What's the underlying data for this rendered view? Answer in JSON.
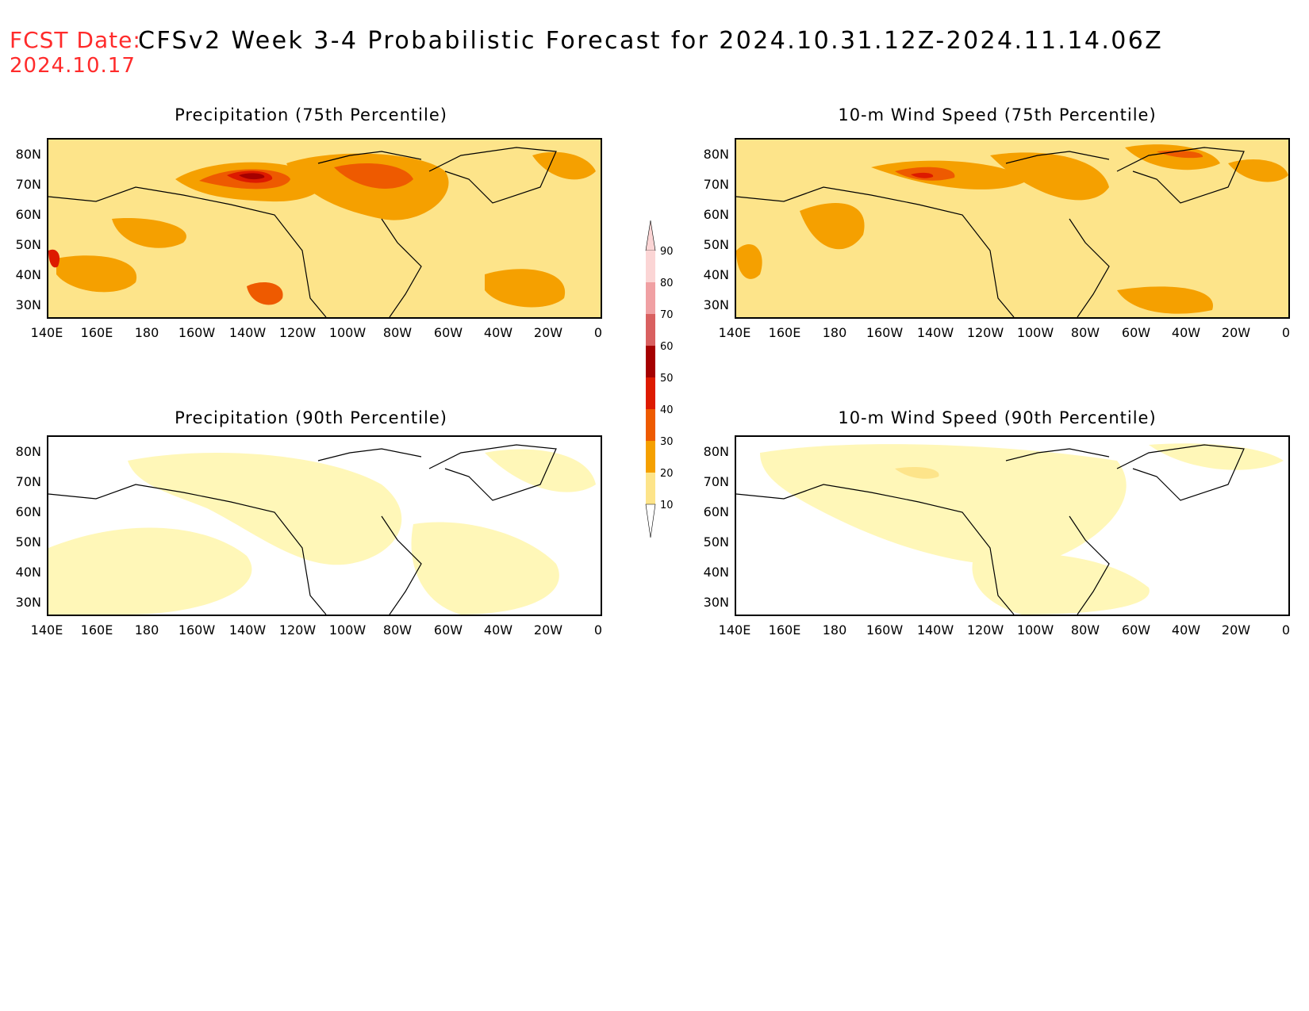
{
  "header": {
    "fcst_label": "FCST Date:",
    "fcst_date": "2024.10.17",
    "title": "CFSv2 Week 3-4 Probabilistic Forecast for 2024.10.31.12Z-2024.11.14.06Z"
  },
  "panels": [
    {
      "title": "Precipitation (75th Percentile)",
      "base_level": 20
    },
    {
      "title": "10-m Wind Speed (75th Percentile)",
      "base_level": 20
    },
    {
      "title": "Precipitation (90th Percentile)",
      "base_level": 10
    },
    {
      "title": "10-m Wind Speed (90th Percentile)",
      "base_level": 10
    }
  ],
  "lat_labels": [
    "80N",
    "70N",
    "60N",
    "50N",
    "40N",
    "30N"
  ],
  "lon_labels": [
    "140E",
    "160E",
    "180",
    "160W",
    "140W",
    "120W",
    "100W",
    "80W",
    "60W",
    "40W",
    "20W",
    "0"
  ],
  "colorbar": {
    "levels": [
      "90",
      "80",
      "70",
      "60",
      "50",
      "40",
      "30",
      "20",
      "10"
    ],
    "colors": [
      "#fbd5d5",
      "#f0a0a3",
      "#d96060",
      "#a50000",
      "#dd1a00",
      "#ee5a00",
      "#f5a000",
      "#fde48a",
      "#fff7b8"
    ]
  }
}
